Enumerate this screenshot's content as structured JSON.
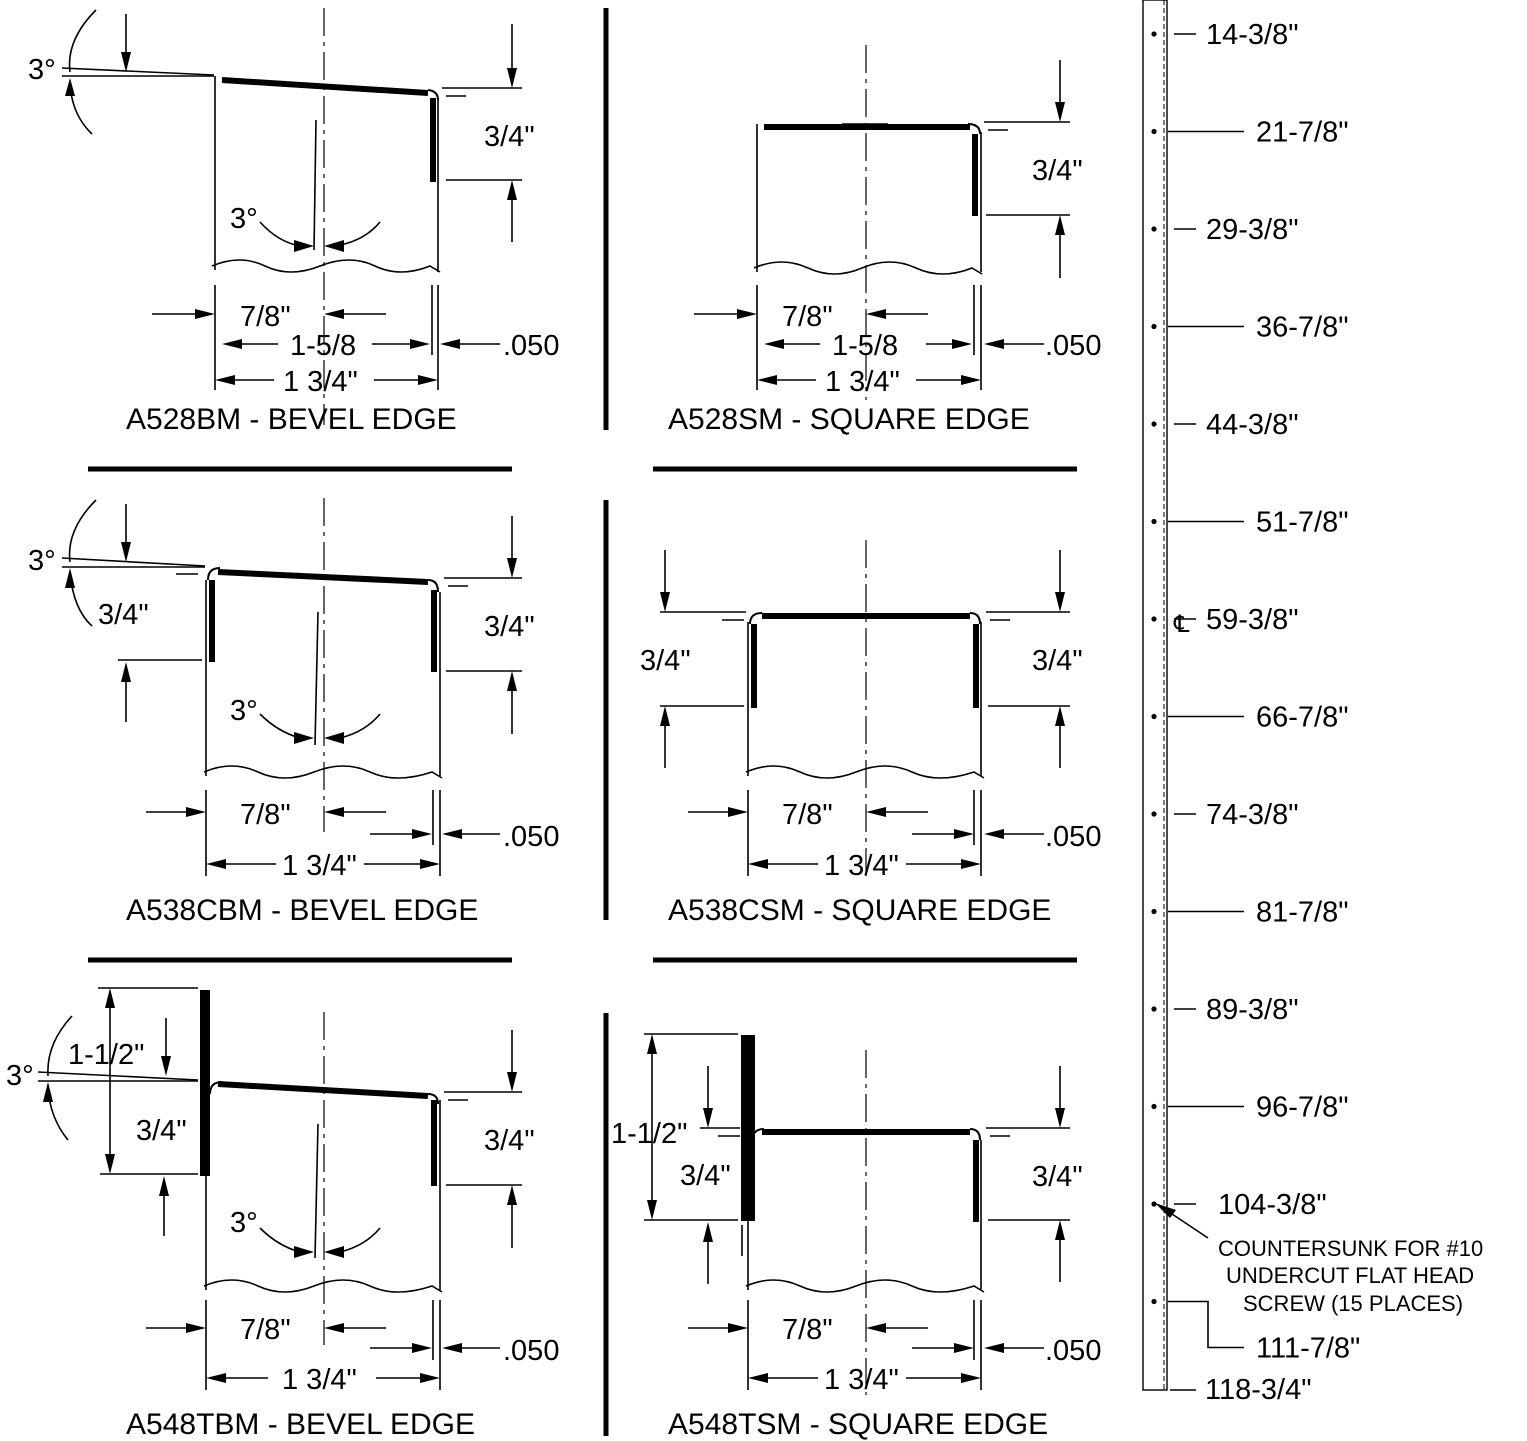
{
  "colors": {
    "ink": "#000000",
    "paper": "#ffffff"
  },
  "profiles": [
    {
      "title": "A528BM - BEVEL EDGE",
      "angle_top": "3°",
      "angle_center": "3°",
      "depth_right": "3/4\"",
      "width_inner": "7/8\"",
      "width_mid": "1-5/8",
      "width_outer": "1 3/4\"",
      "thickness": ".050"
    },
    {
      "title": "A528SM - SQUARE EDGE",
      "depth_right": "3/4\"",
      "width_inner": "7/8\"",
      "width_mid": "1-5/8",
      "width_outer": "1 3/4\"",
      "thickness": ".050"
    },
    {
      "title": "A538CBM - BEVEL EDGE",
      "angle_top": "3°",
      "angle_center": "3°",
      "depth_left": "3/4\"",
      "depth_right": "3/4\"",
      "width_inner": "7/8\"",
      "width_outer": "1 3/4\"",
      "thickness": ".050"
    },
    {
      "title": "A538CSM - SQUARE EDGE",
      "depth_left": "3/4\"",
      "depth_right": "3/4\"",
      "width_inner": "7/8\"",
      "width_outer": "1 3/4\"",
      "thickness": ".050"
    },
    {
      "title": "A548TBM - BEVEL EDGE",
      "angle_top": "3°",
      "angle_center": "3°",
      "flange": "1-1/2\"",
      "depth_left": "3/4\"",
      "depth_right": "3/4\"",
      "width_inner": "7/8\"",
      "width_outer": "1 3/4\"",
      "thickness": ".050"
    },
    {
      "title": "A548TSM - SQUARE EDGE",
      "flange": "1-1/2\"",
      "depth_left": "3/4\"",
      "depth_right": "3/4\"",
      "width_inner": "7/8\"",
      "width_outer": "1 3/4\"",
      "thickness": ".050"
    }
  ],
  "hole_schedule": {
    "positions": [
      "14-3/8\"",
      "21-7/8\"",
      "29-3/8\"",
      "36-7/8\"",
      "44-3/8\"",
      "51-7/8\"",
      "59-3/8\"",
      "66-7/8\"",
      "74-3/8\"",
      "81-7/8\"",
      "89-3/8\"",
      "96-7/8\"",
      "104-3/8\"",
      "111-7/8\""
    ],
    "overall_length": "118-3/4\"",
    "centerline_symbol": "℄",
    "note": [
      "COUNTERSUNK FOR #10",
      "UNDERCUT FLAT HEAD",
      "SCREW (15 PLACES)"
    ]
  }
}
